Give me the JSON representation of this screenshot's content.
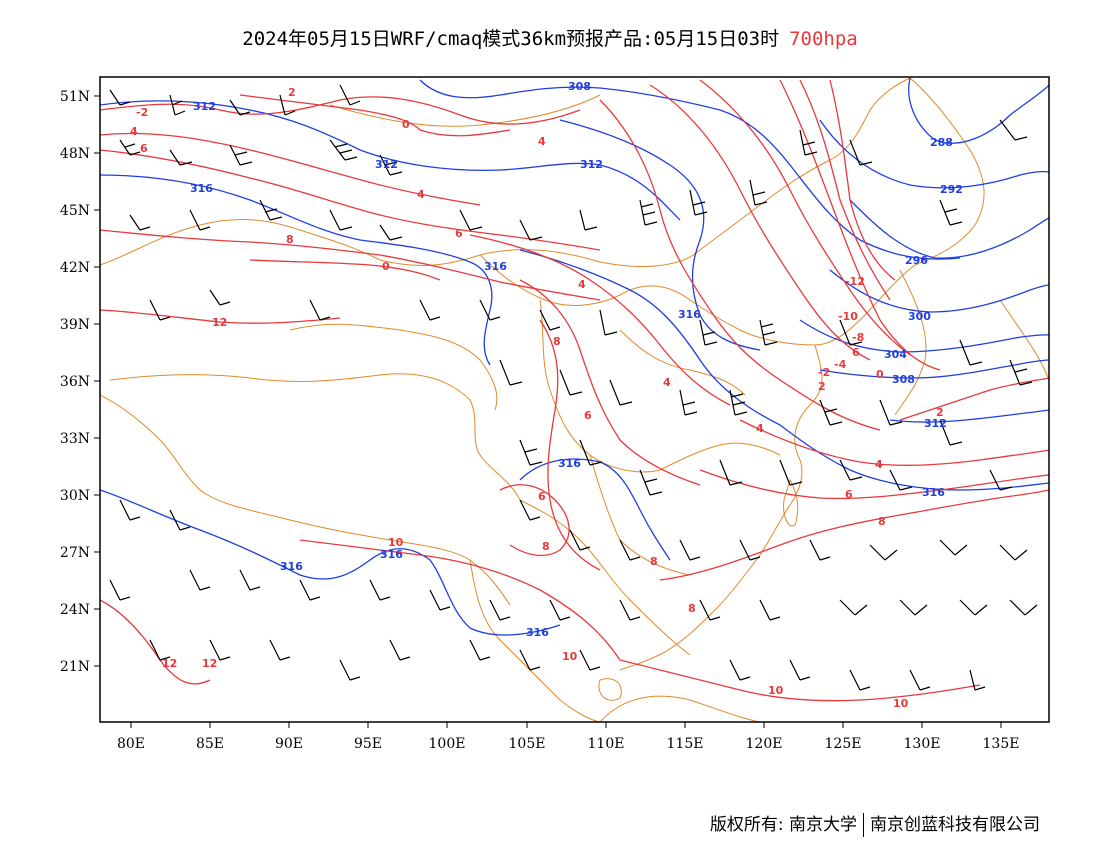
{
  "title": {
    "text": "2024年05月15日WRF/cmaq模式36km预报产品:05月15日03时",
    "level": "700hpa"
  },
  "map": {
    "lon_range": [
      78,
      138
    ],
    "lat_range": [
      18,
      52
    ],
    "lon_ticks": [
      "80E",
      "85E",
      "90E",
      "95E",
      "100E",
      "105E",
      "110E",
      "115E",
      "120E",
      "125E",
      "130E",
      "135E"
    ],
    "lat_ticks": [
      "51N",
      "48N",
      "45N",
      "42N",
      "39N",
      "36N",
      "33N",
      "30N",
      "27N",
      "24N",
      "21N"
    ],
    "colors": {
      "temperature": "#e8393c",
      "geopotential": "#1f3fe0",
      "border": "#e08a2a",
      "wind": "#000000"
    }
  },
  "temperature_labels": [
    "-2",
    "0",
    "2",
    "-4",
    "4",
    "6",
    "8",
    "10",
    "12",
    "-8",
    "-10",
    "-12"
  ],
  "geopotential_labels": [
    "288",
    "292",
    "296",
    "300",
    "304",
    "308",
    "312",
    "316"
  ],
  "footer": {
    "copyright": "版权所有: 南京大学",
    "company": "南京创蓝科技有限公司"
  }
}
